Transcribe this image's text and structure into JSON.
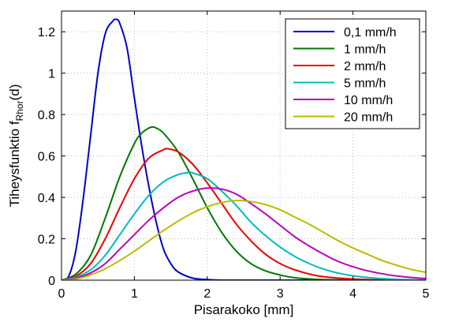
{
  "chart_data": {
    "type": "line",
    "xlabel": "Pisarakoko [mm]",
    "ylabel_main": "Tiheysfunktio f",
    "ylabel_sub": "Rhor",
    "ylabel_suffix": "(d)",
    "xlim": [
      0,
      5
    ],
    "ylim": [
      0,
      1.3
    ],
    "xticks": [
      0,
      1,
      2,
      3,
      4,
      5
    ],
    "xtick_labels": [
      "0",
      "1",
      "2",
      "3",
      "4",
      "5"
    ],
    "yticks": [
      0,
      0.2,
      0.4,
      0.6,
      0.8,
      1,
      1.2
    ],
    "ytick_labels": [
      "0",
      "0.2",
      "0.4",
      "0.6",
      "0.8",
      "1",
      "1.2"
    ],
    "grid": true,
    "legend_position": "top-right",
    "series": [
      {
        "name": "0,1 mm/h",
        "color": "#0000cc",
        "x": [
          0,
          0.1,
          0.2,
          0.3,
          0.4,
          0.5,
          0.6,
          0.7,
          0.75,
          0.8,
          0.9,
          1.0,
          1.1,
          1.2,
          1.3,
          1.4,
          1.5,
          1.6,
          1.8,
          2.0,
          2.2,
          2.5,
          5.0
        ],
        "y": [
          0,
          0.02,
          0.15,
          0.4,
          0.7,
          1.0,
          1.19,
          1.25,
          1.26,
          1.24,
          1.12,
          0.88,
          0.65,
          0.45,
          0.28,
          0.15,
          0.08,
          0.04,
          0.01,
          0.003,
          0,
          0,
          0
        ]
      },
      {
        "name": "1 mm/h",
        "color": "#007700",
        "x": [
          0,
          0.2,
          0.4,
          0.6,
          0.8,
          1.0,
          1.1,
          1.2,
          1.25,
          1.3,
          1.4,
          1.6,
          1.8,
          2.0,
          2.2,
          2.4,
          2.6,
          2.8,
          3.0,
          3.2,
          3.5,
          4.0,
          5.0
        ],
        "y": [
          0,
          0.03,
          0.12,
          0.3,
          0.5,
          0.66,
          0.71,
          0.735,
          0.74,
          0.735,
          0.71,
          0.62,
          0.49,
          0.35,
          0.23,
          0.14,
          0.08,
          0.045,
          0.025,
          0.012,
          0.004,
          0.001,
          0
        ]
      },
      {
        "name": "2 mm/h",
        "color": "#ee0000",
        "x": [
          0,
          0.2,
          0.4,
          0.6,
          0.8,
          1.0,
          1.2,
          1.4,
          1.45,
          1.6,
          1.8,
          2.0,
          2.2,
          2.4,
          2.6,
          2.8,
          3.0,
          3.2,
          3.5,
          3.8,
          4.2,
          5.0
        ],
        "y": [
          0,
          0.02,
          0.08,
          0.2,
          0.35,
          0.49,
          0.59,
          0.63,
          0.635,
          0.62,
          0.56,
          0.47,
          0.37,
          0.27,
          0.19,
          0.125,
          0.08,
          0.05,
          0.022,
          0.01,
          0.003,
          0
        ]
      },
      {
        "name": "5 mm/h",
        "color": "#00bbbb",
        "x": [
          0,
          0.2,
          0.4,
          0.6,
          0.8,
          1.0,
          1.2,
          1.4,
          1.6,
          1.75,
          1.8,
          2.0,
          2.2,
          2.4,
          2.6,
          2.8,
          3.0,
          3.2,
          3.4,
          3.6,
          3.8,
          4.0,
          4.3,
          4.6,
          5.0
        ],
        "y": [
          0,
          0.015,
          0.05,
          0.12,
          0.22,
          0.32,
          0.41,
          0.475,
          0.51,
          0.52,
          0.518,
          0.49,
          0.43,
          0.36,
          0.28,
          0.215,
          0.16,
          0.115,
          0.08,
          0.053,
          0.034,
          0.021,
          0.01,
          0.004,
          0.001
        ]
      },
      {
        "name": "10 mm/h",
        "color": "#bb00bb",
        "x": [
          0,
          0.2,
          0.4,
          0.6,
          0.8,
          1.0,
          1.2,
          1.4,
          1.6,
          1.8,
          2.0,
          2.2,
          2.4,
          2.6,
          2.8,
          3.0,
          3.2,
          3.4,
          3.6,
          3.8,
          4.0,
          4.2,
          4.5,
          4.8,
          5.0
        ],
        "y": [
          0,
          0.01,
          0.035,
          0.08,
          0.15,
          0.22,
          0.29,
          0.35,
          0.4,
          0.43,
          0.445,
          0.44,
          0.415,
          0.37,
          0.32,
          0.265,
          0.21,
          0.165,
          0.125,
          0.09,
          0.065,
          0.045,
          0.025,
          0.013,
          0.008
        ]
      },
      {
        "name": "20 mm/h",
        "color": "#bbbb00",
        "x": [
          0,
          0.2,
          0.4,
          0.6,
          0.8,
          1.0,
          1.2,
          1.4,
          1.6,
          1.8,
          2.0,
          2.2,
          2.4,
          2.6,
          2.8,
          3.0,
          3.2,
          3.4,
          3.6,
          3.8,
          4.0,
          4.2,
          4.4,
          4.6,
          4.8,
          5.0
        ],
        "y": [
          0,
          0.006,
          0.025,
          0.055,
          0.095,
          0.14,
          0.19,
          0.24,
          0.285,
          0.325,
          0.355,
          0.375,
          0.385,
          0.38,
          0.365,
          0.34,
          0.305,
          0.27,
          0.23,
          0.19,
          0.155,
          0.125,
          0.095,
          0.072,
          0.052,
          0.038
        ]
      }
    ]
  }
}
